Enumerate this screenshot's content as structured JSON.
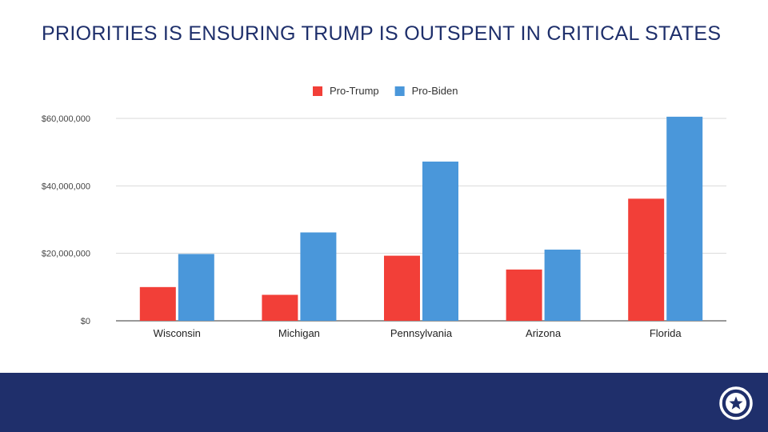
{
  "title": "PRIORITIES IS ENSURING TRUMP IS OUTSPENT IN CRITICAL STATES",
  "colors": {
    "title": "#1e2f6b",
    "footer": "#1f2f6b",
    "pro_trump": "#f23f38",
    "pro_biden": "#4a97da"
  },
  "logo": {
    "icon": "star-in-circle-icon"
  },
  "chart_data": {
    "type": "bar",
    "categories": [
      "Wisconsin",
      "Michigan",
      "Pennsylvania",
      "Arizona",
      "Florida"
    ],
    "series": [
      {
        "name": "Pro-Trump",
        "color": "#f23f38",
        "values": [
          10000000,
          7700000,
          19300000,
          15200000,
          36200000
        ]
      },
      {
        "name": "Pro-Biden",
        "color": "#4a97da",
        "values": [
          19800000,
          26200000,
          47200000,
          21100000,
          60500000
        ]
      }
    ],
    "ylim": [
      0,
      60000000
    ],
    "yticks": [
      0,
      20000000,
      40000000,
      60000000
    ],
    "ytick_labels": [
      "$0",
      "$20,000,000",
      "$40,000,000",
      "$60,000,000"
    ],
    "grid": true,
    "legend": "top-center",
    "xlabel": "",
    "ylabel": ""
  }
}
